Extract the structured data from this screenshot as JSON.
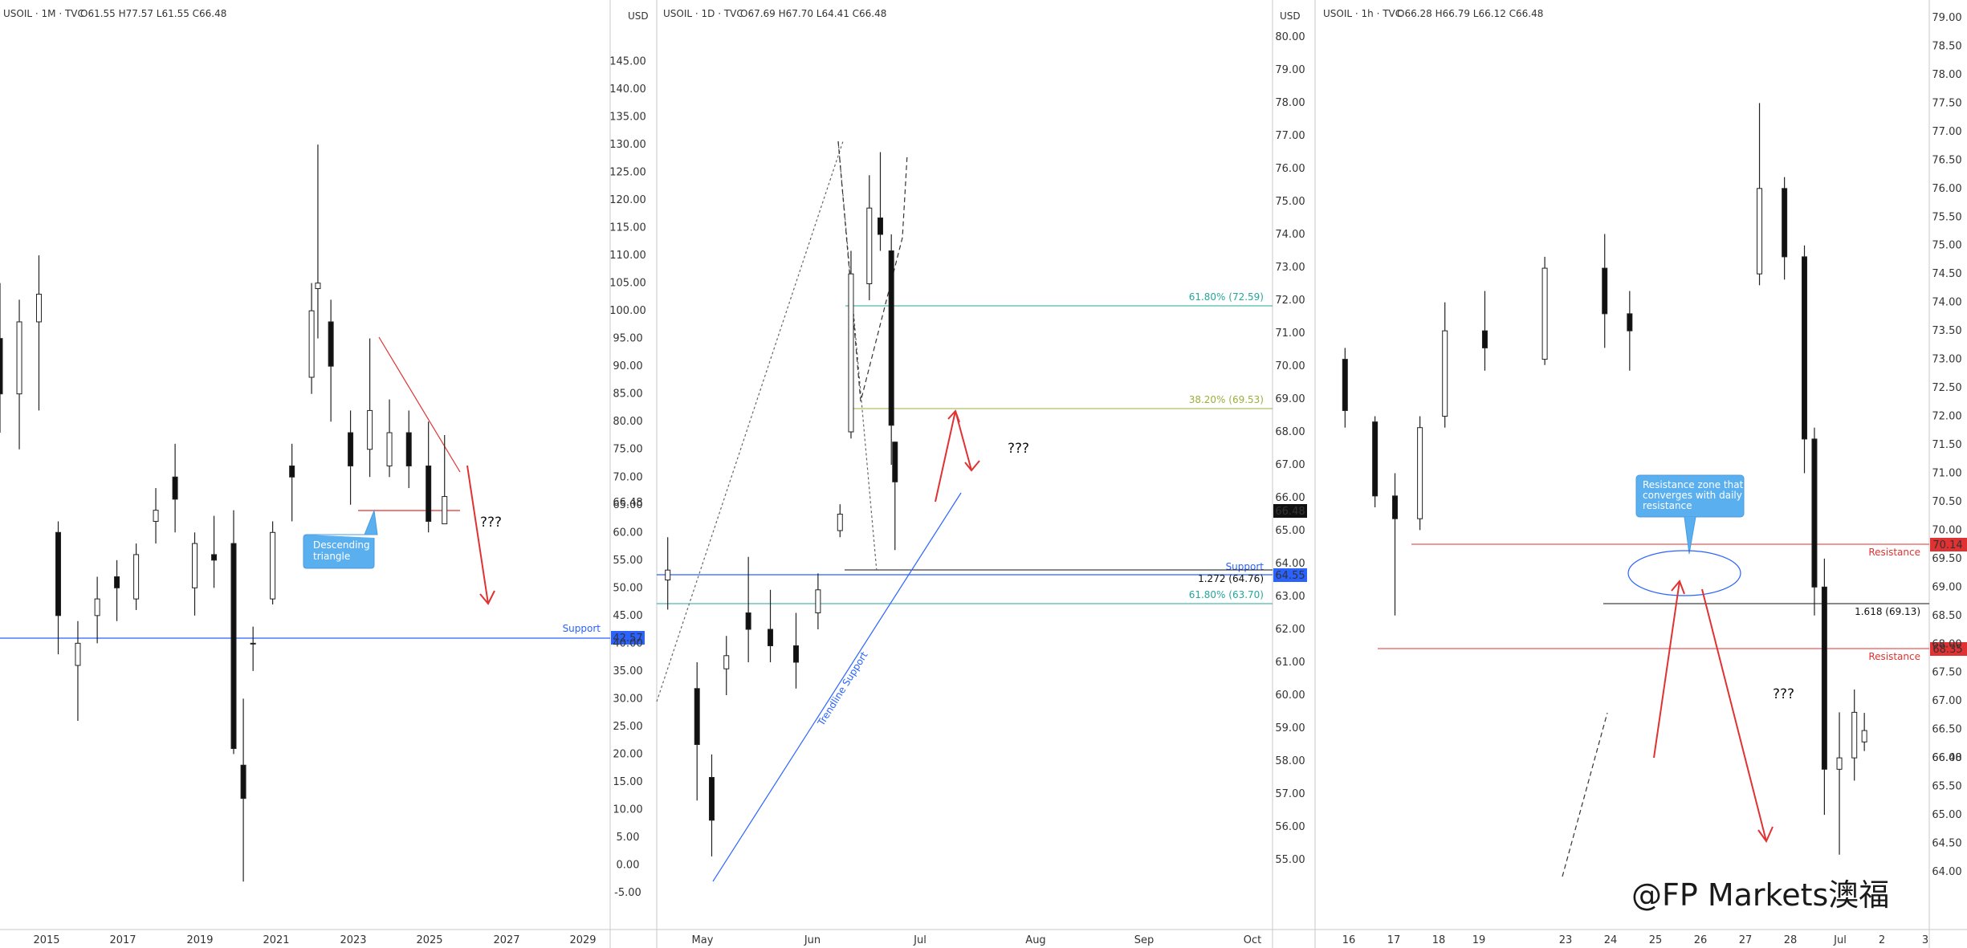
{
  "watermark": "@FP Markets澳福",
  "colors": {
    "red": "#e03232",
    "blue": "#2962ff",
    "teal": "#26a69a",
    "olive": "#9bb03a",
    "black": "#111111",
    "callout": "#5aafef"
  },
  "chart_data": [
    {
      "type": "candlestick",
      "title": "USOIL · 1M · TVC",
      "ohlc_label": "O61.55 H77.57 L61.55 C66.48",
      "currency": "USD",
      "ylim": [
        -5,
        150
      ],
      "yticks": [
        "145.00",
        "140.00",
        "135.00",
        "130.00",
        "125.00",
        "120.00",
        "115.00",
        "110.00",
        "105.00",
        "100.00",
        "95.00",
        "90.00",
        "85.00",
        "80.00",
        "75.00",
        "70.00",
        "65.00",
        "60.00",
        "55.00",
        "50.00",
        "45.00",
        "40.00",
        "35.00",
        "30.00",
        "25.00",
        "20.00",
        "15.00",
        "10.00",
        "5.00",
        "0.00",
        "-5.00"
      ],
      "xticks": [
        "2015",
        "2017",
        "2019",
        "2021",
        "2023",
        "2025",
        "2027",
        "2029"
      ],
      "last_price": "66.48",
      "support_price": "42.57",
      "support_label": "Support",
      "callout": "Descending triangle",
      "question": "???",
      "series": [
        [
          "2014-01",
          95,
          105,
          78,
          85
        ],
        [
          "2014-07",
          85,
          102,
          75,
          98
        ],
        [
          "2015-01",
          98,
          110,
          82,
          103
        ],
        [
          "2015-07",
          60,
          62,
          38,
          45
        ],
        [
          "2016-01",
          36,
          44,
          26,
          40
        ],
        [
          "2016-07",
          45,
          52,
          40,
          48
        ],
        [
          "2017-01",
          52,
          55,
          44,
          50
        ],
        [
          "2017-07",
          48,
          58,
          46,
          56
        ],
        [
          "2018-01",
          62,
          68,
          58,
          64
        ],
        [
          "2018-07",
          70,
          76,
          60,
          66
        ],
        [
          "2019-01",
          50,
          60,
          45,
          58
        ],
        [
          "2019-07",
          56,
          63,
          50,
          55
        ],
        [
          "2020-01",
          58,
          64,
          20,
          21
        ],
        [
          "2020-04",
          18,
          30,
          -3,
          12
        ],
        [
          "2020-07",
          40,
          43,
          35,
          40
        ],
        [
          "2021-01",
          48,
          62,
          47,
          60
        ],
        [
          "2021-07",
          72,
          76,
          62,
          70
        ],
        [
          "2022-01",
          88,
          105,
          85,
          100
        ],
        [
          "2022-03",
          104,
          130,
          95,
          105
        ],
        [
          "2022-07",
          98,
          102,
          80,
          90
        ],
        [
          "2023-01",
          78,
          82,
          65,
          72
        ],
        [
          "2023-07",
          75,
          95,
          70,
          82
        ],
        [
          "2024-01",
          72,
          84,
          70,
          78
        ],
        [
          "2024-07",
          78,
          82,
          68,
          72
        ],
        [
          "2025-01",
          72,
          80,
          60,
          62
        ],
        [
          "2025-06",
          61.55,
          77.57,
          61.55,
          66.48
        ]
      ]
    },
    {
      "type": "candlestick",
      "title": "USOIL · 1D · TVC",
      "ohlc_label": "O67.69 H67.70 L64.41 C66.48",
      "currency": "USD",
      "ylim": [
        54,
        80
      ],
      "yticks": [
        "80.00",
        "79.00",
        "78.00",
        "77.00",
        "76.00",
        "75.00",
        "74.00",
        "73.00",
        "72.00",
        "71.00",
        "70.00",
        "69.00",
        "68.00",
        "67.00",
        "66.00",
        "65.00",
        "64.00",
        "63.00",
        "62.00",
        "61.00",
        "60.00",
        "59.00",
        "58.00",
        "57.00",
        "56.00",
        "55.00"
      ],
      "xticks": [
        "May",
        "Jun",
        "Jul",
        "Aug",
        "Sep",
        "Oct"
      ],
      "last_price": "66.48",
      "support_price": "64.55",
      "support_label": "Support",
      "fib_levels": [
        {
          "label": "61.80% (72.59)",
          "value": 72.59
        },
        {
          "label": "38.20% (69.53)",
          "value": 69.53
        },
        {
          "label": "1.272 (64.76)",
          "value": 64.76
        },
        {
          "label": "61.80% (63.70)",
          "value": 63.7
        }
      ],
      "trendline_label": "Trendline Support",
      "question": "???",
      "series": [
        [
          "2025-04-23",
          63.5,
          64.8,
          62.6,
          63.8
        ],
        [
          "2025-05-01",
          60.2,
          61,
          56.8,
          58.5
        ],
        [
          "2025-05-05",
          57.5,
          58.2,
          55.1,
          56.2
        ],
        [
          "2025-05-09",
          60.8,
          61.8,
          60,
          61.2
        ],
        [
          "2025-05-15",
          62.5,
          64.2,
          61,
          62
        ],
        [
          "2025-05-21",
          62,
          63.2,
          61,
          61.5
        ],
        [
          "2025-05-28",
          61.5,
          62.5,
          60.2,
          61
        ],
        [
          "2025-06-03",
          62.5,
          63.7,
          62,
          63.2
        ],
        [
          "2025-06-09",
          65,
          65.8,
          64.8,
          65.5
        ],
        [
          "2025-06-12",
          68,
          73.5,
          67.8,
          72.8
        ],
        [
          "2025-06-17",
          72.5,
          75.8,
          72,
          74.8
        ],
        [
          "2025-06-20",
          74.5,
          76.5,
          73.5,
          74
        ],
        [
          "2025-06-23",
          73.5,
          74,
          67,
          68.2
        ],
        [
          "2025-06-24",
          67.69,
          67.7,
          64.41,
          66.48
        ]
      ]
    },
    {
      "type": "candlestick",
      "title": "USOIL · 1h · TVC",
      "ohlc_label": "O66.28 H66.79 L66.12 C66.48",
      "currency": "USD",
      "ylim": [
        64,
        79
      ],
      "yticks": [
        "79.00",
        "78.50",
        "78.00",
        "77.50",
        "77.00",
        "76.50",
        "76.00",
        "75.50",
        "75.00",
        "74.50",
        "74.00",
        "73.50",
        "73.00",
        "72.50",
        "72.00",
        "71.50",
        "71.00",
        "70.50",
        "70.00",
        "69.50",
        "69.00",
        "68.50",
        "68.00",
        "67.50",
        "67.00",
        "66.50",
        "66.00",
        "65.50",
        "65.00",
        "64.50",
        "64.00"
      ],
      "xticks": [
        "16",
        "17",
        "18",
        "19",
        "23",
        "24",
        "25",
        "26",
        "27",
        "28",
        "Jul",
        "2",
        "3"
      ],
      "last_price": "66.48",
      "resistance_upper": "70.14",
      "resistance_lower": "68.35",
      "resistance_label": "Resistance",
      "ext_label": "1.618 (69.13)",
      "callout": "Resistance zone that converges with daily resistance",
      "question": "???",
      "series": [
        [
          "2025-06-16T00",
          73.0,
          73.2,
          71.8,
          72.1
        ],
        [
          "2025-06-16T12",
          71.9,
          72.0,
          70.4,
          70.6
        ],
        [
          "2025-06-16T20",
          70.6,
          71.0,
          68.5,
          70.2
        ],
        [
          "2025-06-17T06",
          70.2,
          72.0,
          70.0,
          71.8
        ],
        [
          "2025-06-17T16",
          72.0,
          74.0,
          71.8,
          73.5
        ],
        [
          "2025-06-18T08",
          73.5,
          74.2,
          72.8,
          73.2
        ],
        [
          "2025-06-19T08",
          73.0,
          74.8,
          72.9,
          74.6
        ],
        [
          "2025-06-20T08",
          74.6,
          75.2,
          73.2,
          73.8
        ],
        [
          "2025-06-20T18",
          73.8,
          74.2,
          72.8,
          73.5
        ],
        [
          "2025-06-22T22",
          74.5,
          77.5,
          74.3,
          76.0
        ],
        [
          "2025-06-23T08",
          76.0,
          76.2,
          74.4,
          74.8
        ],
        [
          "2025-06-23T16",
          74.8,
          75.0,
          71.0,
          71.6
        ],
        [
          "2025-06-23T20",
          71.6,
          71.8,
          68.5,
          69.0
        ],
        [
          "2025-06-24T00",
          69.0,
          69.5,
          65.0,
          65.8
        ],
        [
          "2025-06-24T06",
          65.8,
          66.8,
          64.3,
          66.0
        ],
        [
          "2025-06-24T12",
          66.0,
          67.2,
          65.6,
          66.8
        ],
        [
          "2025-06-24T16",
          66.28,
          66.79,
          66.12,
          66.48
        ]
      ]
    }
  ]
}
